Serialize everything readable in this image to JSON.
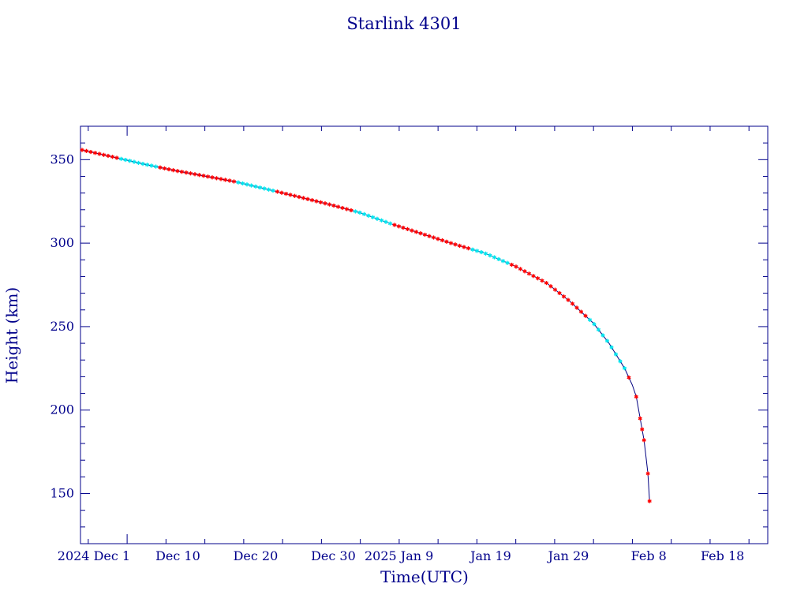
{
  "chart_data": {
    "type": "line",
    "title": "Starlink 4301",
    "xlabel": "Time(UTC)",
    "ylabel": "Height (km)",
    "x_axis_type": "date",
    "xlim": [
      "2024-11-25T00:00",
      "2025-02-21T10:00"
    ],
    "ylim": [
      120,
      370
    ],
    "x_tick_labels": [
      {
        "date": "2024-12-01",
        "label": "2024 Dec 1"
      },
      {
        "date": "2024-12-10",
        "label": "Dec 10"
      },
      {
        "date": "2024-12-20",
        "label": "Dec 20"
      },
      {
        "date": "2024-12-30",
        "label": "Dec 30"
      },
      {
        "date": "2025-01-09",
        "label": "2025 Jan 9"
      },
      {
        "date": "2025-01-19",
        "label": "Jan 19"
      },
      {
        "date": "2025-01-29",
        "label": "Jan 29"
      },
      {
        "date": "2025-02-08",
        "label": "Feb 8"
      },
      {
        "date": "2025-02-18",
        "label": "Feb 18"
      }
    ],
    "y_ticks": [
      150,
      200,
      250,
      300,
      350
    ],
    "grid": false,
    "line_color": "#000080",
    "axis_color": "#00008b",
    "marker_colors": {
      "observed": "#ff0000",
      "interpolated": "#00e5ee"
    },
    "series": [
      {
        "values": [
          {
            "x": "2024-11-25",
            "y": 356.0
          },
          {
            "x": "2024-11-29",
            "y": 351.8
          },
          {
            "x": "2024-12-03",
            "y": 347.5
          },
          {
            "x": "2024-12-07",
            "y": 343.6
          },
          {
            "x": "2024-12-11",
            "y": 340.2
          },
          {
            "x": "2024-12-15",
            "y": 336.7
          },
          {
            "x": "2024-12-19",
            "y": 332.3
          },
          {
            "x": "2024-12-23",
            "y": 327.8
          },
          {
            "x": "2024-12-27",
            "y": 323.2
          },
          {
            "x": "2024-12-31",
            "y": 318.2
          },
          {
            "x": "2025-01-04",
            "y": 311.5
          },
          {
            "x": "2025-01-08",
            "y": 305.5
          },
          {
            "x": "2025-01-12",
            "y": 299.5
          },
          {
            "x": "2025-01-16",
            "y": 294.0
          },
          {
            "x": "2025-01-20",
            "y": 286.0
          },
          {
            "x": "2025-01-24",
            "y": 276.0
          },
          {
            "x": "2025-01-27",
            "y": 265.0
          },
          {
            "x": "2025-01-30",
            "y": 252.0
          },
          {
            "x": "2025-02-01",
            "y": 240.0
          },
          {
            "x": "2025-02-02",
            "y": 232.5
          },
          {
            "x": "2025-02-03",
            "y": 225.0
          },
          {
            "x": "2025-02-04",
            "y": 215.0
          },
          {
            "x": "2025-02-04T12:00",
            "y": 208.0
          },
          {
            "x": "2025-02-05",
            "y": 195.0
          },
          {
            "x": "2025-02-05T12:00",
            "y": 182.0
          },
          {
            "x": "2025-02-05T18:00",
            "y": 172.0
          },
          {
            "x": "2025-02-06",
            "y": 162.0
          },
          {
            "x": "2025-02-06T05:00",
            "y": 145.5
          }
        ]
      }
    ]
  }
}
